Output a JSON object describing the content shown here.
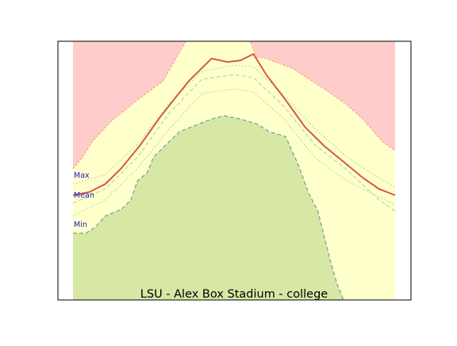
{
  "chart_data": {
    "type": "area",
    "title": "LSU - Alex Box Stadium - college",
    "xlabel": "",
    "ylabel": "",
    "x_ticks": [],
    "y_ticks": [],
    "xlim": [
      0,
      100
    ],
    "ylim": [
      0,
      100
    ],
    "grid": false,
    "colors": {
      "record_band": "#ffcccc",
      "record_edge": "#f0a070",
      "normal_band": "#ffffcc",
      "min_band": "#d6e8a4",
      "min_edge": "#6f9fa8",
      "mean_line": "#d05a48",
      "dotted_line": "#a8d890",
      "dashed_line": "#b0dca0",
      "label_color": "#2020cc"
    },
    "annotations": [
      {
        "text": "Max",
        "at_y": 48.2
      },
      {
        "text": "Mean",
        "at_y": 40.5
      },
      {
        "text": "Min",
        "at_y": 29.2
      }
    ],
    "series": [
      {
        "role": "record-upper",
        "values": [
          [
            0,
            50.6
          ],
          [
            3,
            55.3
          ],
          [
            6,
            61.3
          ],
          [
            12,
            69.3
          ],
          [
            20,
            77.3
          ],
          [
            28,
            84.7
          ],
          [
            35,
            100
          ],
          [
            55,
            100
          ],
          [
            57,
            93.9
          ],
          [
            60,
            93.3
          ],
          [
            68,
            89.6
          ],
          [
            78,
            81.6
          ],
          [
            85,
            75.5
          ],
          [
            90,
            69.9
          ],
          [
            96,
            61.3
          ],
          [
            100,
            57.7
          ]
        ]
      },
      {
        "role": "min-upper",
        "values": [
          [
            0,
            25.8
          ],
          [
            4,
            25.8
          ],
          [
            7,
            28.2
          ],
          [
            10,
            32.5
          ],
          [
            15,
            35.0
          ],
          [
            18,
            38.7
          ],
          [
            20,
            46.0
          ],
          [
            23,
            49.1
          ],
          [
            25,
            55.2
          ],
          [
            29,
            60.1
          ],
          [
            33,
            65.0
          ],
          [
            38,
            67.5
          ],
          [
            43,
            69.9
          ],
          [
            47,
            71.2
          ],
          [
            52,
            69.9
          ],
          [
            57,
            68.1
          ],
          [
            61,
            65.0
          ],
          [
            66,
            63.2
          ],
          [
            70,
            52.1
          ],
          [
            73,
            41.7
          ],
          [
            76,
            34.4
          ],
          [
            78,
            24.5
          ],
          [
            80,
            14.7
          ],
          [
            82,
            6.1
          ],
          [
            84,
            0
          ]
        ]
      },
      {
        "role": "mean",
        "values": [
          [
            0,
            40.5
          ],
          [
            5,
            41.7
          ],
          [
            10,
            44.8
          ],
          [
            15,
            50.9
          ],
          [
            21,
            60.1
          ],
          [
            27,
            70.6
          ],
          [
            32,
            78.5
          ],
          [
            36,
            84.7
          ],
          [
            43,
            93.3
          ],
          [
            48,
            92.0
          ],
          [
            52,
            92.6
          ],
          [
            56,
            95.1
          ],
          [
            60,
            87.1
          ],
          [
            66,
            77.3
          ],
          [
            72,
            66.9
          ],
          [
            78,
            59.5
          ],
          [
            84,
            53.4
          ],
          [
            90,
            47.2
          ],
          [
            95,
            42.9
          ],
          [
            100,
            40.5
          ]
        ]
      },
      {
        "role": "dashed",
        "values": [
          [
            0,
            37.4
          ],
          [
            10,
            42.9
          ],
          [
            20,
            55.2
          ],
          [
            30,
            72.4
          ],
          [
            40,
            85.3
          ],
          [
            50,
            87.1
          ],
          [
            56,
            85.9
          ],
          [
            65,
            75.5
          ],
          [
            75,
            60.1
          ],
          [
            85,
            50.3
          ],
          [
            95,
            38.7
          ],
          [
            100,
            34.4
          ]
        ]
      },
      {
        "role": "dotted-1",
        "values": [
          [
            0,
            44.8
          ],
          [
            10,
            48.5
          ],
          [
            20,
            60.1
          ],
          [
            30,
            76.1
          ],
          [
            40,
            88.3
          ],
          [
            50,
            90.8
          ],
          [
            56,
            90.2
          ],
          [
            65,
            79.8
          ],
          [
            75,
            66.3
          ],
          [
            85,
            55.2
          ],
          [
            95,
            47.2
          ],
          [
            100,
            43.6
          ]
        ]
      },
      {
        "role": "dotted-2",
        "values": [
          [
            0,
            32.5
          ],
          [
            10,
            38.7
          ],
          [
            20,
            50.9
          ],
          [
            30,
            66.3
          ],
          [
            40,
            79.8
          ],
          [
            50,
            81.6
          ],
          [
            56,
            80.4
          ],
          [
            65,
            70.6
          ],
          [
            75,
            55.2
          ],
          [
            85,
            46.0
          ],
          [
            95,
            39.9
          ],
          [
            100,
            36.8
          ]
        ]
      }
    ]
  }
}
